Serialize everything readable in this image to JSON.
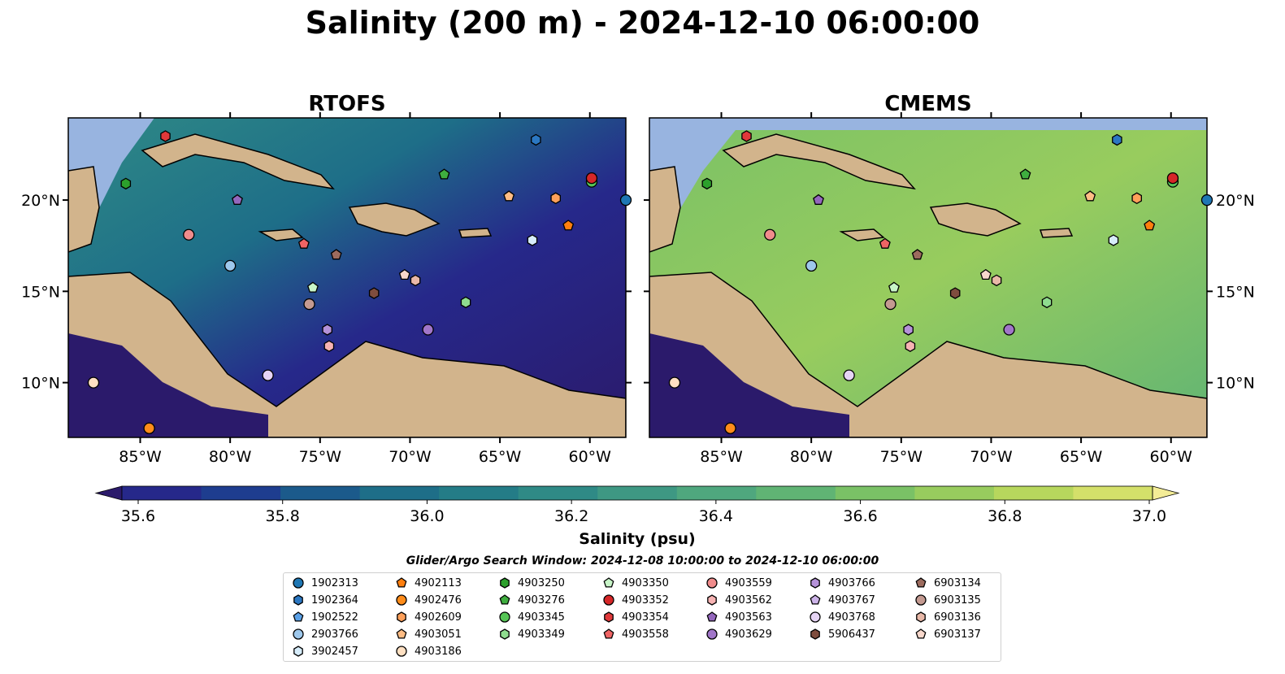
{
  "title": "Salinity (200 m) - 2024-12-10 06:00:00",
  "panels": [
    {
      "id": "rtofs",
      "title": "RTOFS"
    },
    {
      "id": "cmems",
      "title": "CMEMS"
    }
  ],
  "lon_ticks": [
    "85°W",
    "80°W",
    "75°W",
    "70°W",
    "65°W",
    "60°W"
  ],
  "lat_ticks": [
    "20°N",
    "15°N",
    "10°N"
  ],
  "map_extent": {
    "lon": [
      -89,
      -58
    ],
    "lat": [
      7,
      24.5
    ]
  },
  "colorbar": {
    "label": "Salinity (psu)",
    "ticks": [
      "35.6",
      "35.8",
      "36.0",
      "36.2",
      "36.4",
      "36.6",
      "36.8",
      "37.0"
    ],
    "range": [
      35.6,
      37.0
    ],
    "extend": "both",
    "colors": [
      "#2b1a6b",
      "#26288a",
      "#1e3d8f",
      "#1b5a8b",
      "#1e6e88",
      "#247c87",
      "#2f8a86",
      "#3e9883",
      "#4fa77e",
      "#60b474",
      "#7ac166",
      "#98cc5e",
      "#b7d75d",
      "#d4e06a",
      "#f3ec96"
    ]
  },
  "colors": {
    "ocean_shallow": "#98b4e0",
    "land": "#d2b48c",
    "coast": "#000000"
  },
  "search_window": "Glider/Argo Search Window: 2024-12-08 10:00:00 to 2024-12-10 06:00:00",
  "platforms": [
    {
      "id": "1902313",
      "marker": "circle",
      "color": "#1f77b4",
      "lon": -58,
      "lat": 20
    },
    {
      "id": "1902364",
      "marker": "hexagon",
      "color": "#2b77c2",
      "lon": -63,
      "lat": 23.3
    },
    {
      "id": "1902522",
      "marker": "pentagon",
      "color": "#5aa0e6",
      "lon": null,
      "lat": null
    },
    {
      "id": "2903766",
      "marker": "circle",
      "color": "#9ec8ec",
      "lon": -80,
      "lat": 16.4
    },
    {
      "id": "3902457",
      "marker": "hexagon",
      "color": "#d6ecfa",
      "lon": -63.2,
      "lat": 17.8
    },
    {
      "id": "4902113",
      "marker": "pentagon",
      "color": "#ff7f0e",
      "lon": -61.2,
      "lat": 18.6
    },
    {
      "id": "4902476",
      "marker": "circle",
      "color": "#ff8c1a",
      "lon": -84.5,
      "lat": 7.5
    },
    {
      "id": "4902609",
      "marker": "hexagon",
      "color": "#ffa05a",
      "lon": -61.9,
      "lat": 20.1
    },
    {
      "id": "4903051",
      "marker": "pentagon",
      "color": "#ffbd85",
      "lon": -64.5,
      "lat": 20.2
    },
    {
      "id": "4903186",
      "marker": "circle",
      "color": "#ffe0c2",
      "lon": -87.6,
      "lat": 10
    },
    {
      "id": "4903250",
      "marker": "hexagon",
      "color": "#2ca02c",
      "lon": -85.8,
      "lat": 20.9
    },
    {
      "id": "4903276",
      "marker": "pentagon",
      "color": "#3fae3f",
      "lon": -68.1,
      "lat": 21.4
    },
    {
      "id": "4903345",
      "marker": "circle",
      "color": "#56c556",
      "lon": -59.9,
      "lat": 21
    },
    {
      "id": "4903349",
      "marker": "hexagon",
      "color": "#8fdc8f",
      "lon": -66.9,
      "lat": 14.4
    },
    {
      "id": "4903350",
      "marker": "pentagon",
      "color": "#c8f5c8",
      "lon": -75.4,
      "lat": 15.2
    },
    {
      "id": "4903352",
      "marker": "circle",
      "color": "#d62728",
      "lon": -59.9,
      "lat": 21.2
    },
    {
      "id": "4903354",
      "marker": "hexagon",
      "color": "#e0393a",
      "lon": -83.6,
      "lat": 23.5
    },
    {
      "id": "4903558",
      "marker": "pentagon",
      "color": "#ef6464",
      "lon": -75.9,
      "lat": 17.6
    },
    {
      "id": "4903559",
      "marker": "circle",
      "color": "#f08c8c",
      "lon": -82.3,
      "lat": 18.1
    },
    {
      "id": "4903562",
      "marker": "hexagon",
      "color": "#f7b3b3",
      "lon": -74.5,
      "lat": 12
    },
    {
      "id": "4903563",
      "marker": "pentagon",
      "color": "#9467bd",
      "lon": -79.6,
      "lat": 20
    },
    {
      "id": "4903629",
      "marker": "circle",
      "color": "#a176c9",
      "lon": -69,
      "lat": 12.9
    },
    {
      "id": "4903766",
      "marker": "hexagon",
      "color": "#b592d9",
      "lon": -74.6,
      "lat": 12.9
    },
    {
      "id": "4903767",
      "marker": "pentagon",
      "color": "#ccb3e8",
      "lon": null,
      "lat": null
    },
    {
      "id": "4903768",
      "marker": "circle",
      "color": "#e6d4f5",
      "lon": -77.9,
      "lat": 10.4
    },
    {
      "id": "5906437",
      "marker": "hexagon",
      "color": "#7f4d3e",
      "lon": -72,
      "lat": 14.9
    },
    {
      "id": "6903134",
      "marker": "pentagon",
      "color": "#9c6b5e",
      "lon": -74.1,
      "lat": 17
    },
    {
      "id": "6903135",
      "marker": "circle",
      "color": "#c49a91",
      "lon": -75.6,
      "lat": 14.3
    },
    {
      "id": "6903136",
      "marker": "hexagon",
      "color": "#e8b8a8",
      "lon": -69.7,
      "lat": 15.6
    },
    {
      "id": "6903137",
      "marker": "pentagon",
      "color": "#f8d8cc",
      "lon": -70.3,
      "lat": 15.9
    }
  ]
}
